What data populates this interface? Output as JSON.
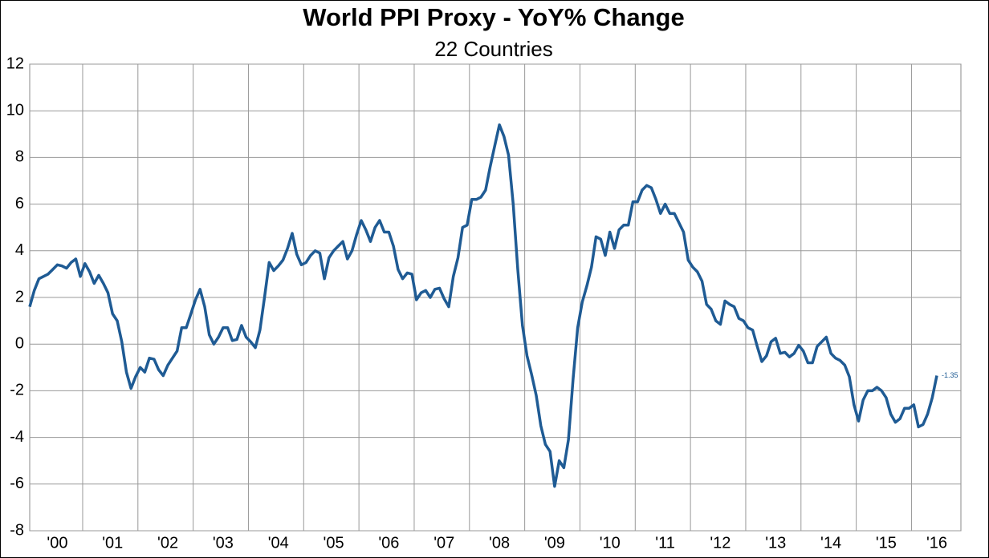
{
  "chart_data": {
    "type": "line",
    "title": "World PPI Proxy - YoY% Change",
    "subtitle": "22 Countries",
    "categories": [
      null,
      null,
      null,
      null,
      null,
      null,
      "'00",
      null,
      null,
      null,
      null,
      null,
      null,
      null,
      null,
      null,
      null,
      null,
      "'01",
      null,
      null,
      null,
      null,
      null,
      null,
      null,
      null,
      null,
      null,
      null,
      "'02",
      null,
      null,
      null,
      null,
      null,
      null,
      null,
      null,
      null,
      null,
      null,
      "'03",
      null,
      null,
      null,
      null,
      null,
      null,
      null,
      null,
      null,
      null,
      null,
      "'04",
      null,
      null,
      null,
      null,
      null,
      null,
      null,
      null,
      null,
      null,
      null,
      "'05",
      null,
      null,
      null,
      null,
      null,
      null,
      null,
      null,
      null,
      null,
      null,
      "'06",
      null,
      null,
      null,
      null,
      null,
      null,
      null,
      null,
      null,
      null,
      null,
      "'07",
      null,
      null,
      null,
      null,
      null,
      null,
      null,
      null,
      null,
      null,
      null,
      "'08",
      null,
      null,
      null,
      null,
      null,
      null,
      null,
      null,
      null,
      null,
      null,
      "'09",
      null,
      null,
      null,
      null,
      null,
      null,
      null,
      null,
      null,
      null,
      null,
      "'10",
      null,
      null,
      null,
      null,
      null,
      null,
      null,
      null,
      null,
      null,
      null,
      "'11",
      null,
      null,
      null,
      null,
      null,
      null,
      null,
      null,
      null,
      null,
      null,
      "'12",
      null,
      null,
      null,
      null,
      null,
      null,
      null,
      null,
      null,
      null,
      null,
      "'13",
      null,
      null,
      null,
      null,
      null,
      null,
      null,
      null,
      null,
      null,
      null,
      "'14",
      null,
      null,
      null,
      null,
      null,
      null,
      null,
      null,
      null,
      null,
      null,
      "'15",
      null,
      null,
      null,
      null,
      null,
      null,
      null,
      null,
      null,
      null,
      "'16"
    ],
    "series": [
      {
        "name": "World PPI Proxy",
        "color": "#1f5b94",
        "values": [
          1.6,
          2.3,
          2.8,
          2.9,
          3.0,
          3.2,
          3.4,
          3.35,
          3.25,
          3.5,
          3.65,
          2.9,
          3.45,
          3.1,
          2.6,
          2.95,
          2.6,
          2.2,
          1.3,
          1.0,
          0.1,
          -1.2,
          -1.9,
          -1.4,
          -1.0,
          -1.2,
          -0.6,
          -0.65,
          -1.1,
          -1.35,
          -0.9,
          -0.6,
          -0.3,
          0.7,
          0.7,
          1.3,
          1.9,
          2.35,
          1.6,
          0.4,
          0.0,
          0.3,
          0.7,
          0.7,
          0.15,
          0.2,
          0.8,
          0.3,
          0.1,
          -0.15,
          0.6,
          2.0,
          3.5,
          3.15,
          3.35,
          3.6,
          4.1,
          4.75,
          3.85,
          3.4,
          3.5,
          3.8,
          4.0,
          3.9,
          2.8,
          3.7,
          4.0,
          4.2,
          4.4,
          3.65,
          4.0,
          4.7,
          5.3,
          4.9,
          4.4,
          5.0,
          5.3,
          4.8,
          4.8,
          4.2,
          3.2,
          2.8,
          3.05,
          3.0,
          1.9,
          2.2,
          2.3,
          2.0,
          2.35,
          2.4,
          1.95,
          1.6,
          2.9,
          3.7,
          5.0,
          5.1,
          6.2,
          6.2,
          6.3,
          6.6,
          7.6,
          8.5,
          9.4,
          8.9,
          8.1,
          6.0,
          3.2,
          0.8,
          -0.5,
          -1.3,
          -2.2,
          -3.5,
          -4.3,
          -4.6,
          -6.1,
          -5.0,
          -5.3,
          -4.1,
          -1.5,
          0.7,
          1.8,
          2.5,
          3.3,
          4.6,
          4.5,
          3.8,
          4.8,
          4.1,
          4.9,
          5.1,
          5.1,
          6.1,
          6.1,
          6.6,
          6.8,
          6.7,
          6.2,
          5.6,
          6.0,
          5.6,
          5.6,
          5.2,
          4.8,
          3.6,
          3.3,
          3.1,
          2.7,
          1.7,
          1.5,
          1.0,
          0.85,
          1.85,
          1.7,
          1.6,
          1.1,
          1.0,
          0.7,
          0.6,
          -0.1,
          -0.75,
          -0.5,
          0.1,
          0.25,
          -0.4,
          -0.35,
          -0.55,
          -0.4,
          -0.05,
          -0.3,
          -0.8,
          -0.8,
          -0.1,
          0.1,
          0.3,
          -0.4,
          -0.6,
          -0.7,
          -0.9,
          -1.4,
          -2.6,
          -3.3,
          -2.4,
          -2.0,
          -2.0,
          -1.85,
          -2.0,
          -2.3,
          -3.0,
          -3.35,
          -3.2,
          -2.75,
          -2.75,
          -2.6,
          -3.55,
          -3.45,
          -3.0,
          -2.3,
          -1.35
        ]
      }
    ],
    "ylim": [
      -8,
      12
    ],
    "yticks": [
      -8,
      -6,
      -4,
      -2,
      0,
      2,
      4,
      6,
      8,
      10,
      12
    ],
    "grid": true,
    "label_last_point": true
  }
}
